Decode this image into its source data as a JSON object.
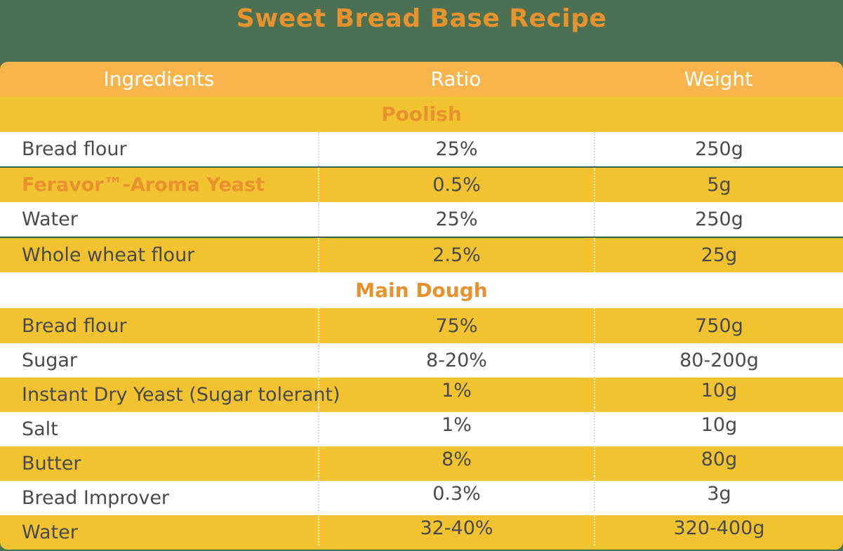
{
  "title": "Sweet Bread Base Recipe",
  "colors": {
    "page_background": "#4B7152",
    "header_bg": "#F8B54E",
    "yellow_row_bg": "#F1C331",
    "white_row_bg": "#FFFFFF",
    "accent_orange": "#E8922D",
    "data_text": "#4A4A4A",
    "header_text": "#FFFFFF",
    "row_divider_green": "#3B614C"
  },
  "table": {
    "columns": [
      "Ingredients",
      "Ratio",
      "Weight"
    ],
    "rows": [
      {
        "type": "section",
        "label": "Poolish"
      },
      {
        "type": "data",
        "ingredient": "Bread flour",
        "ratio": "25%",
        "weight": "250g"
      },
      {
        "type": "data",
        "ingredient": "Feravor™-Aroma Yeast",
        "ratio": "0.5%",
        "weight": "5g",
        "highlight": true
      },
      {
        "type": "data",
        "ingredient": "Water",
        "ratio": "25%",
        "weight": "250g"
      },
      {
        "type": "data",
        "ingredient": "Whole wheat flour",
        "ratio": "2.5%",
        "weight": "25g"
      },
      {
        "type": "section",
        "label": "Main Dough"
      },
      {
        "type": "data",
        "ingredient": "Bread flour",
        "ratio": "75%",
        "weight": "750g"
      },
      {
        "type": "data",
        "ingredient": "Sugar",
        "ratio": "8-20%",
        "weight": "80-200g"
      },
      {
        "type": "data",
        "ingredient": "Instant Dry Yeast (Sugar tolerant)",
        "ratio": "1%",
        "weight": "10g"
      },
      {
        "type": "data",
        "ingredient": "Salt",
        "ratio": "1%",
        "weight": "10g"
      },
      {
        "type": "data",
        "ingredient": "Butter",
        "ratio": "8%",
        "weight": "80g"
      },
      {
        "type": "data",
        "ingredient": "Bread Improver",
        "ratio": "0.3%",
        "weight": "3g"
      },
      {
        "type": "data",
        "ingredient": "Water",
        "ratio": "32-40%",
        "weight": "320-400g"
      }
    ]
  }
}
